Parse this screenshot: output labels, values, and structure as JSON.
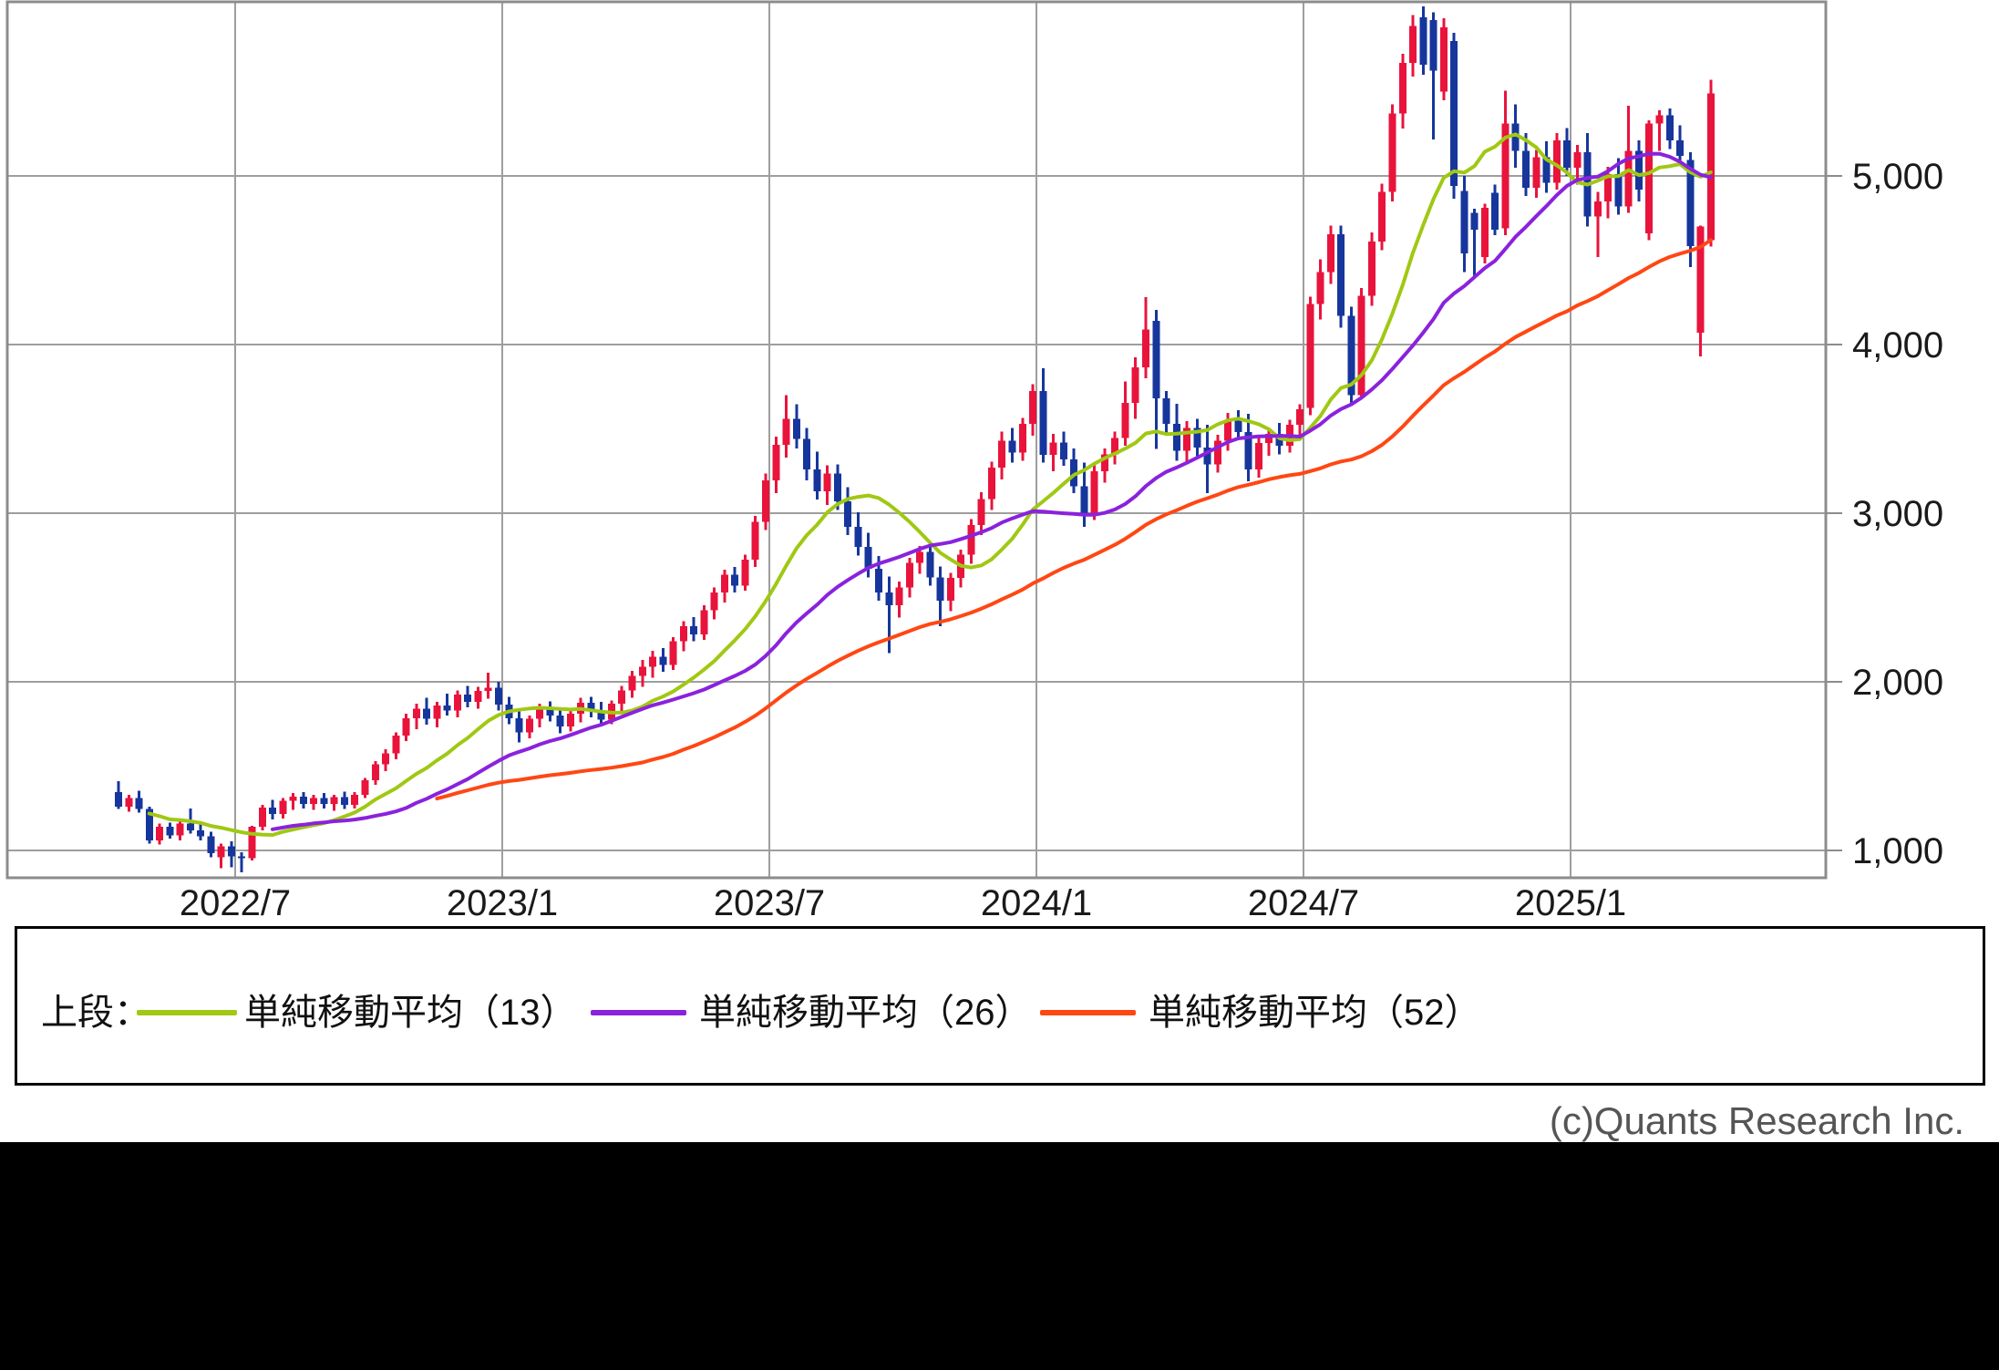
{
  "chart_data": {
    "type": "candlestick",
    "period": "weekly",
    "title": "",
    "x_axis": {
      "tick_labels": [
        "2022/7",
        "2023/1",
        "2023/7",
        "2024/1",
        "2024/7",
        "2025/1"
      ]
    },
    "y_axis": {
      "tick_values": [
        5000,
        4000,
        3000,
        2000,
        1000
      ],
      "tick_labels": [
        "5,000",
        "4,000",
        "3,000",
        "2,000",
        "1,000"
      ],
      "top_value": 6030,
      "bottom_value": 840
    },
    "grid": true,
    "legend_position": "bottom",
    "colors": {
      "up_candle": "#e8143c",
      "down_candle": "#16369c",
      "sma13": "#a0c814",
      "sma26": "#8a22dd",
      "sma52": "#ff4713",
      "gridline": "#9e9e9e",
      "plot_border": "#8c8c8c",
      "axis_text": "#1a1a1a",
      "copyright_text": "#555555",
      "bottom_bar": "#000000"
    },
    "overlays": [
      {
        "name": "単純移動平均（13）",
        "window": 13,
        "color_key": "sma13",
        "start_index": 3
      },
      {
        "name": "単純移動平均（26）",
        "window": 26,
        "color_key": "sma26",
        "start_index": 15
      },
      {
        "name": "単純移動平均（52）",
        "window": 52,
        "color_key": "sma52",
        "start_index": 31
      }
    ],
    "ohlc": [
      [
        1345,
        1410,
        1245,
        1260
      ],
      [
        1260,
        1330,
        1230,
        1310
      ],
      [
        1310,
        1355,
        1225,
        1245
      ],
      [
        1245,
        1260,
        1040,
        1060
      ],
      [
        1060,
        1160,
        1035,
        1140
      ],
      [
        1140,
        1165,
        1070,
        1090
      ],
      [
        1090,
        1180,
        1060,
        1160
      ],
      [
        1160,
        1250,
        1100,
        1120
      ],
      [
        1120,
        1160,
        1060,
        1085
      ],
      [
        1085,
        1110,
        960,
        985
      ],
      [
        960,
        1040,
        895,
        1025
      ],
      [
        1025,
        1055,
        900,
        965
      ],
      [
        965,
        990,
        870,
        955
      ],
      [
        955,
        1145,
        940,
        1140
      ],
      [
        1140,
        1270,
        1120,
        1255
      ],
      [
        1255,
        1300,
        1185,
        1215
      ],
      [
        1215,
        1310,
        1190,
        1295
      ],
      [
        1295,
        1340,
        1240,
        1320
      ],
      [
        1320,
        1345,
        1250,
        1275
      ],
      [
        1275,
        1330,
        1240,
        1310
      ],
      [
        1310,
        1340,
        1250,
        1275
      ],
      [
        1275,
        1330,
        1235,
        1315
      ],
      [
        1315,
        1350,
        1245,
        1270
      ],
      [
        1270,
        1345,
        1250,
        1330
      ],
      [
        1330,
        1430,
        1310,
        1415
      ],
      [
        1415,
        1530,
        1390,
        1510
      ],
      [
        1510,
        1600,
        1470,
        1575
      ],
      [
        1575,
        1700,
        1540,
        1680
      ],
      [
        1680,
        1810,
        1650,
        1785
      ],
      [
        1785,
        1870,
        1720,
        1840
      ],
      [
        1840,
        1905,
        1745,
        1780
      ],
      [
        1780,
        1880,
        1730,
        1860
      ],
      [
        1860,
        1930,
        1800,
        1830
      ],
      [
        1830,
        1950,
        1790,
        1925
      ],
      [
        1925,
        1975,
        1850,
        1880
      ],
      [
        1880,
        1970,
        1840,
        1945
      ],
      [
        1945,
        2055,
        1900,
        1965
      ],
      [
        1965,
        2000,
        1830,
        1865
      ],
      [
        1865,
        1910,
        1750,
        1785
      ],
      [
        1785,
        1835,
        1640,
        1700
      ],
      [
        1700,
        1800,
        1665,
        1780
      ],
      [
        1780,
        1870,
        1730,
        1845
      ],
      [
        1845,
        1885,
        1765,
        1800
      ],
      [
        1800,
        1850,
        1695,
        1735
      ],
      [
        1735,
        1830,
        1705,
        1810
      ],
      [
        1810,
        1905,
        1760,
        1875
      ],
      [
        1875,
        1910,
        1790,
        1825
      ],
      [
        1825,
        1880,
        1740,
        1775
      ],
      [
        1775,
        1890,
        1750,
        1870
      ],
      [
        1870,
        1975,
        1820,
        1950
      ],
      [
        1950,
        2065,
        1905,
        2035
      ],
      [
        2035,
        2130,
        1970,
        2090
      ],
      [
        2090,
        2185,
        2025,
        2150
      ],
      [
        2150,
        2200,
        2060,
        2100
      ],
      [
        2100,
        2265,
        2070,
        2240
      ],
      [
        2240,
        2360,
        2180,
        2330
      ],
      [
        2330,
        2385,
        2240,
        2280
      ],
      [
        2280,
        2455,
        2250,
        2425
      ],
      [
        2425,
        2560,
        2370,
        2530
      ],
      [
        2530,
        2665,
        2470,
        2635
      ],
      [
        2635,
        2680,
        2530,
        2570
      ],
      [
        2570,
        2755,
        2540,
        2725
      ],
      [
        2725,
        2985,
        2680,
        2950
      ],
      [
        2950,
        3235,
        2900,
        3195
      ],
      [
        3195,
        3455,
        3120,
        3405
      ],
      [
        3405,
        3700,
        3330,
        3560
      ],
      [
        3560,
        3645,
        3385,
        3440
      ],
      [
        3440,
        3505,
        3195,
        3260
      ],
      [
        3260,
        3365,
        3080,
        3130
      ],
      [
        3130,
        3285,
        3050,
        3235
      ],
      [
        3235,
        3290,
        3020,
        3070
      ],
      [
        3070,
        3155,
        2870,
        2920
      ],
      [
        2920,
        3005,
        2750,
        2800
      ],
      [
        2800,
        2885,
        2620,
        2670
      ],
      [
        2670,
        2745,
        2480,
        2530
      ],
      [
        2530,
        2625,
        2170,
        2455
      ],
      [
        2455,
        2595,
        2380,
        2560
      ],
      [
        2560,
        2735,
        2500,
        2705
      ],
      [
        2705,
        2805,
        2640,
        2770
      ],
      [
        2770,
        2815,
        2570,
        2620
      ],
      [
        2620,
        2685,
        2330,
        2480
      ],
      [
        2480,
        2645,
        2420,
        2615
      ],
      [
        2615,
        2785,
        2560,
        2755
      ],
      [
        2755,
        2965,
        2700,
        2930
      ],
      [
        2930,
        3125,
        2870,
        3085
      ],
      [
        3085,
        3305,
        3020,
        3270
      ],
      [
        3270,
        3485,
        3200,
        3430
      ],
      [
        3430,
        3505,
        3300,
        3360
      ],
      [
        3360,
        3565,
        3310,
        3530
      ],
      [
        3530,
        3765,
        3460,
        3725
      ],
      [
        3725,
        3860,
        3300,
        3345
      ],
      [
        3345,
        3470,
        3250,
        3420
      ],
      [
        3420,
        3485,
        3280,
        3320
      ],
      [
        3320,
        3385,
        3120,
        3160
      ],
      [
        3160,
        3300,
        2920,
        2990
      ],
      [
        2990,
        3285,
        2960,
        3250
      ],
      [
        3250,
        3385,
        3180,
        3350
      ],
      [
        3350,
        3485,
        3290,
        3445
      ],
      [
        3445,
        3780,
        3400,
        3655
      ],
      [
        3655,
        3925,
        3560,
        3865
      ],
      [
        3865,
        4280,
        3800,
        4090
      ],
      [
        4140,
        4205,
        3380,
        3680
      ],
      [
        3680,
        3725,
        3470,
        3530
      ],
      [
        3530,
        3650,
        3310,
        3370
      ],
      [
        3370,
        3545,
        3290,
        3505
      ],
      [
        3505,
        3560,
        3330,
        3390
      ],
      [
        3390,
        3525,
        3120,
        3290
      ],
      [
        3290,
        3465,
        3240,
        3430
      ],
      [
        3430,
        3595,
        3370,
        3555
      ],
      [
        3555,
        3610,
        3440,
        3480
      ],
      [
        3480,
        3590,
        3190,
        3260
      ],
      [
        3260,
        3445,
        3210,
        3415
      ],
      [
        3415,
        3505,
        3340,
        3470
      ],
      [
        3470,
        3535,
        3350,
        3400
      ],
      [
        3400,
        3555,
        3360,
        3525
      ],
      [
        3525,
        3645,
        3450,
        3615
      ],
      [
        3625,
        4285,
        3580,
        4240
      ],
      [
        4240,
        4505,
        4150,
        4430
      ],
      [
        4430,
        4705,
        4360,
        4655
      ],
      [
        4655,
        4705,
        4100,
        4170
      ],
      [
        4170,
        4225,
        3650,
        3700
      ],
      [
        3700,
        4335,
        3680,
        4290
      ],
      [
        4290,
        4665,
        4230,
        4610
      ],
      [
        4610,
        4955,
        4560,
        4905
      ],
      [
        4905,
        5425,
        4850,
        5370
      ],
      [
        5370,
        5725,
        5280,
        5670
      ],
      [
        5670,
        5955,
        5590,
        5890
      ],
      [
        5940,
        6005,
        5600,
        5660
      ],
      [
        5925,
        5970,
        5215,
        5625
      ],
      [
        5500,
        5935,
        5450,
        5880
      ],
      [
        5800,
        5850,
        4865,
        4940
      ],
      [
        4910,
        5000,
        4430,
        4540
      ],
      [
        4780,
        4805,
        4400,
        4680
      ],
      [
        4520,
        4835,
        4480,
        4810
      ],
      [
        4900,
        4950,
        4650,
        4680
      ],
      [
        4690,
        5505,
        4650,
        5310
      ],
      [
        5310,
        5425,
        5050,
        5150
      ],
      [
        5150,
        5255,
        4880,
        4930
      ],
      [
        4930,
        5155,
        4870,
        5110
      ],
      [
        5110,
        5205,
        4900,
        4960
      ],
      [
        4960,
        5255,
        4920,
        5210
      ],
      [
        5210,
        5285,
        5000,
        5050
      ],
      [
        5050,
        5185,
        4950,
        5140
      ],
      [
        5140,
        5255,
        4700,
        4760
      ],
      [
        4760,
        4905,
        4520,
        4850
      ],
      [
        4850,
        5055,
        4750,
        5010
      ],
      [
        5010,
        5105,
        4770,
        4820
      ],
      [
        4820,
        5415,
        4780,
        5150
      ],
      [
        5150,
        5210,
        4850,
        4920
      ],
      [
        4660,
        5330,
        4620,
        5310
      ],
      [
        5310,
        5390,
        5150,
        5360
      ],
      [
        5360,
        5400,
        5160,
        5210
      ],
      [
        5210,
        5300,
        5080,
        5120
      ],
      [
        5095,
        5140,
        4460,
        4585
      ],
      [
        4070,
        4705,
        3930,
        4700
      ],
      [
        4620,
        5570,
        4580,
        5490
      ]
    ]
  },
  "legend": {
    "row_label": "上段："
  },
  "footer": {
    "copyright": "(c)Quants Research Inc."
  }
}
